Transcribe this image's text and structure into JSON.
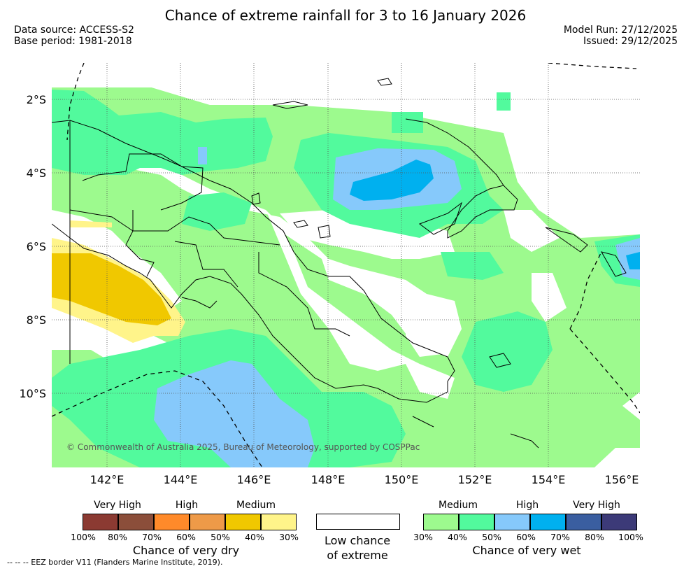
{
  "title": "Chance of extreme rainfall for 3 to 16 January 2026",
  "meta": {
    "data_source": "Data source: ACCESS-S2",
    "base_period": "Base period: 1981-2018",
    "model_run": "Model Run: 27/12/2025",
    "issued": "Issued: 29/12/2025"
  },
  "map": {
    "lat_labels": [
      "2°S",
      "4°S",
      "6°S",
      "8°S",
      "10°S"
    ],
    "lon_labels": [
      "142°E",
      "144°E",
      "146°E",
      "148°E",
      "150°E",
      "152°E",
      "154°E",
      "156°E"
    ],
    "copyright": "© Commonwealth of Australia 2025, Bureau of Meteorology, supported by COSPPac"
  },
  "legend": {
    "dry": {
      "levels": [
        "Very High",
        "High",
        "Medium"
      ],
      "colors": [
        "#8b3a32",
        "#8b4e3a",
        "#ff8a2a",
        "#ee9a48",
        "#f0c800",
        "#fff48a"
      ],
      "percents": [
        "100%",
        "80%",
        "70%",
        "60%",
        "50%",
        "40%",
        "30%"
      ],
      "caption": "Chance of very dry"
    },
    "low": {
      "caption_line1": "Low chance",
      "caption_line2": "of extreme"
    },
    "wet": {
      "levels": [
        "Medium",
        "High",
        "Very High"
      ],
      "colors": [
        "#9dfa8e",
        "#52fa9d",
        "#86c9fb",
        "#00b0ef",
        "#3a5ea0",
        "#3c3a78"
      ],
      "percents": [
        "30%",
        "40%",
        "50%",
        "60%",
        "70%",
        "80%",
        "100%"
      ],
      "caption": "Chance of very wet"
    }
  },
  "footer": "--  --  -- EEZ border V11 (Flanders Marine Institute, 2019)."
}
